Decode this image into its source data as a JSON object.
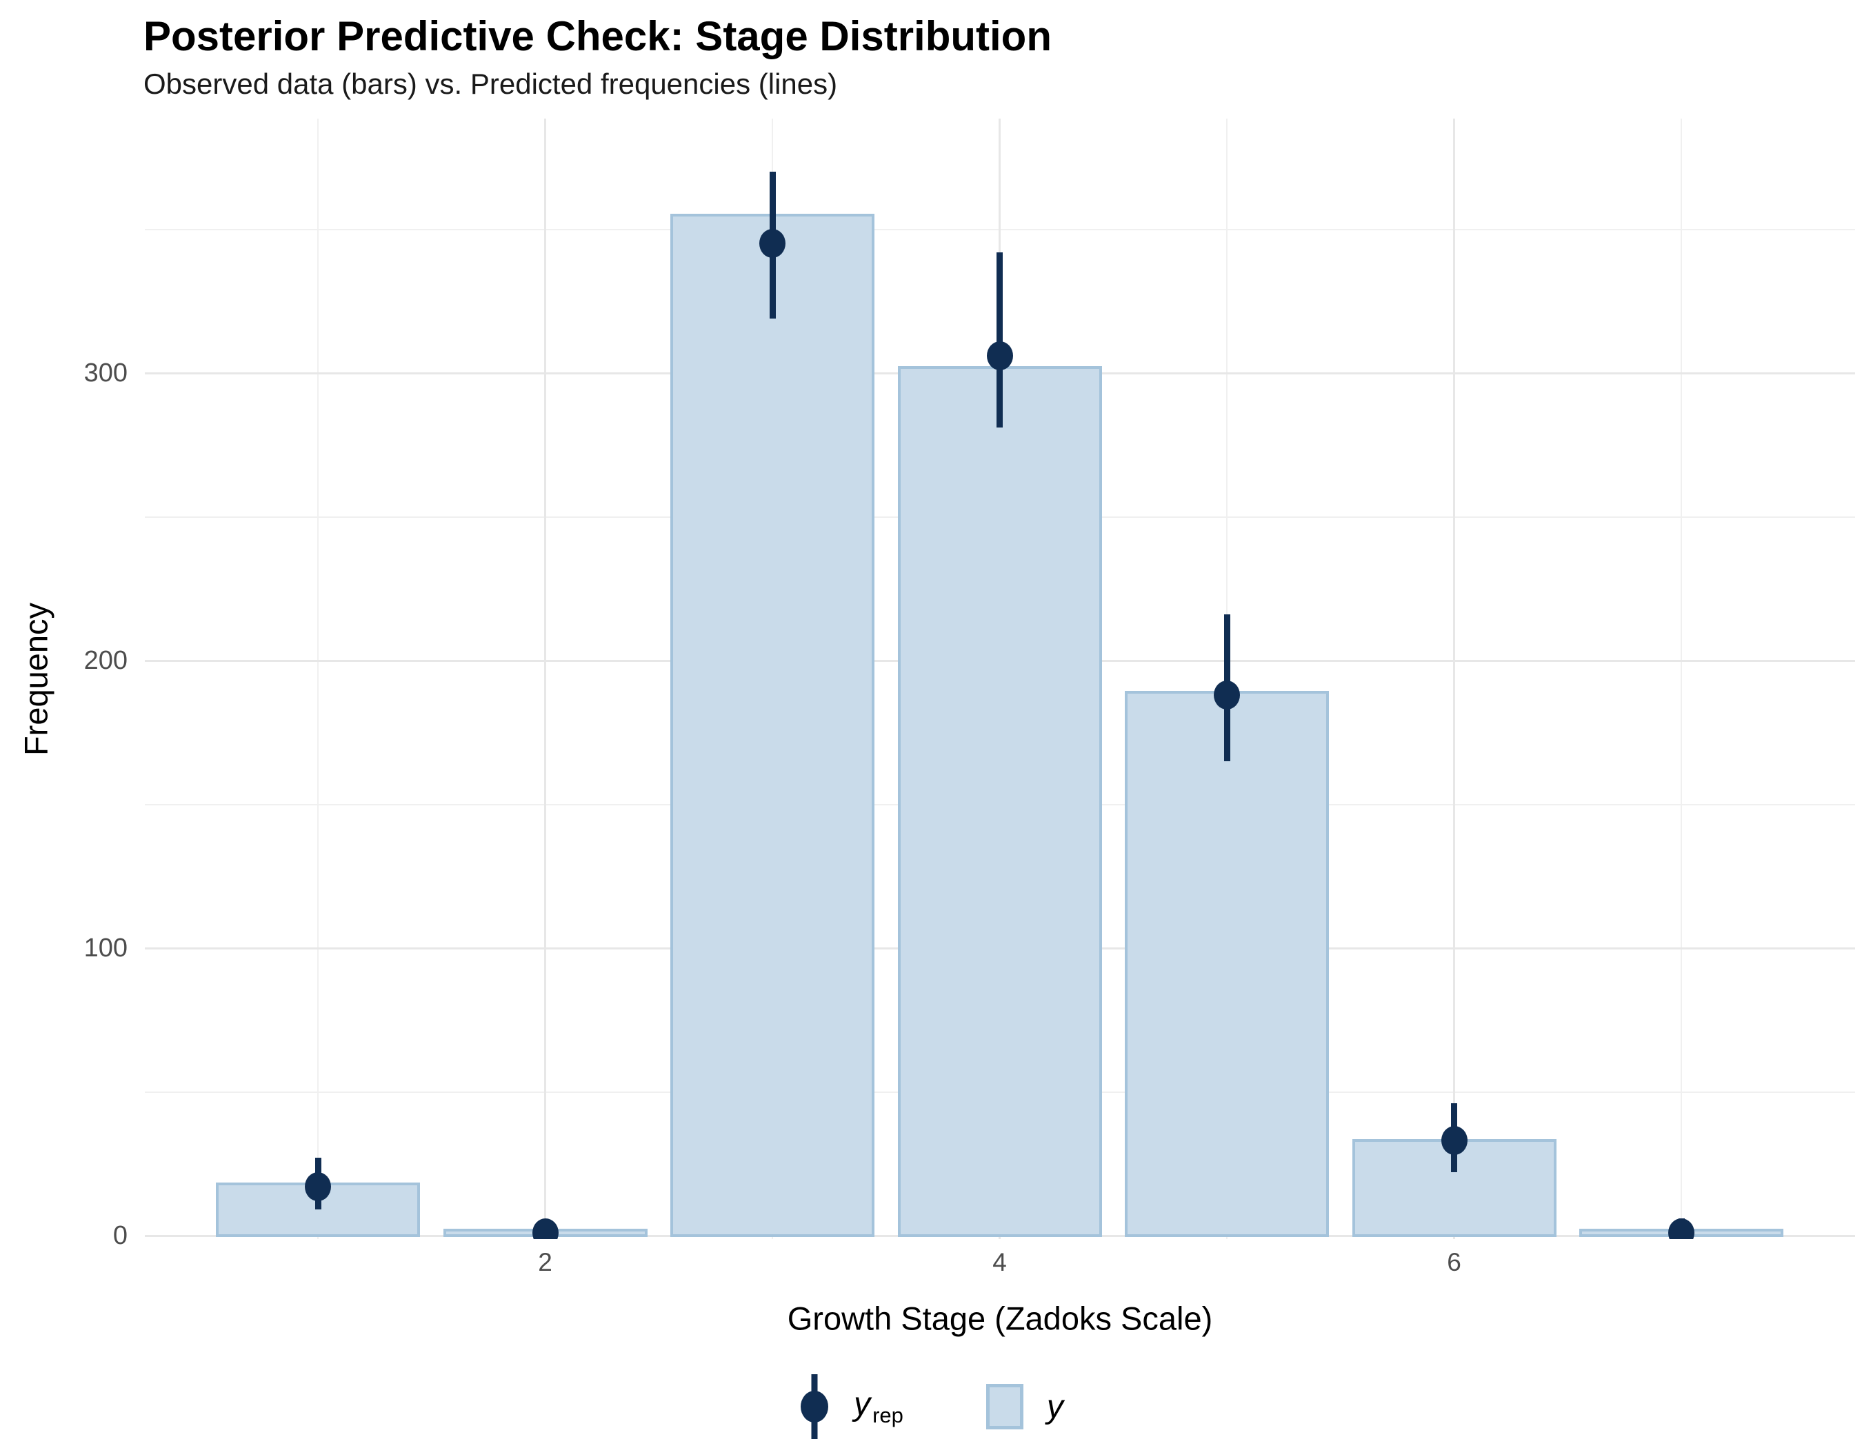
{
  "chart": {
    "title": "Posterior Predictive Check: Stage Distribution",
    "subtitle": "Observed data (bars) vs. Predicted frequencies (lines)"
  },
  "legend": {
    "yrep_main": "y",
    "yrep_sub": "rep",
    "y_main": "y"
  },
  "chart_data": {
    "type": "bar",
    "title": "Posterior Predictive Check: Stage Distribution",
    "subtitle": "Observed data (bars) vs. Predicted frequencies (lines)",
    "xlabel": "Growth Stage (Zadoks Scale)",
    "ylabel": "Frequency",
    "categories": [
      1,
      2,
      3,
      4,
      5,
      6,
      7
    ],
    "series": [
      {
        "name": "y",
        "type": "bar",
        "values": [
          18,
          2,
          355,
          302,
          189,
          33,
          2
        ]
      },
      {
        "name": "y_rep",
        "type": "pointrange",
        "values": [
          17,
          1,
          345,
          306,
          188,
          33,
          1
        ],
        "ci_low": [
          9,
          0,
          319,
          281,
          165,
          22,
          0
        ],
        "ci_high": [
          27,
          3,
          370,
          342,
          216,
          46,
          6
        ]
      }
    ],
    "x_ticks": [
      2,
      4,
      6
    ],
    "y_ticks": [
      0,
      100,
      200,
      300
    ],
    "grid": {
      "y_major": [
        0,
        100,
        200,
        300
      ],
      "y_minor": [
        50,
        150,
        250,
        350
      ],
      "x_major": [
        2,
        4,
        6
      ],
      "x_minor": [
        1,
        3,
        5,
        7
      ]
    },
    "ylim": [
      0,
      388
    ],
    "xlim": [
      0.2,
      7.8
    ],
    "grid_on": true,
    "legend_position": "bottom",
    "colors": {
      "bar_fill": "#c9dbea",
      "bar_border": "#a4c3db",
      "point": "#102d52",
      "grid_major": "#e7e7e7",
      "grid_minor": "#f0f0f0",
      "tick_text": "#4d4d4d",
      "title_text": "#000000"
    }
  }
}
